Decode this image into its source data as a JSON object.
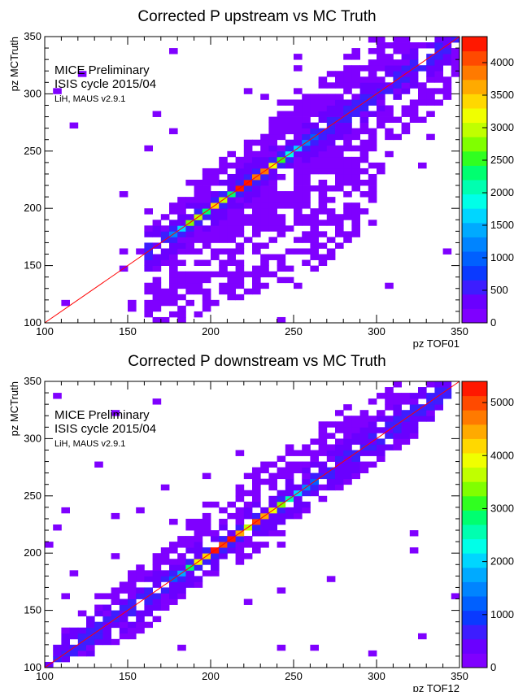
{
  "chart_data": [
    {
      "type": "heatmap",
      "title": "Corrected P upstream vs MC Truth",
      "xlabel": "pz TOF01",
      "ylabel": "pz MCTruth",
      "xlim": [
        100,
        350
      ],
      "ylim": [
        100,
        350
      ],
      "bin_width": 5,
      "x_ticks": [
        100,
        150,
        200,
        250,
        300,
        350
      ],
      "y_ticks": [
        100,
        150,
        200,
        250,
        300,
        350
      ],
      "z_max": 4400,
      "z_ticks": [
        0,
        500,
        1000,
        1500,
        2000,
        2500,
        3000,
        3500,
        4000
      ],
      "annotations": [
        "MICE Preliminary",
        "ISIS cycle 2015/04",
        "LiH, MAUS v2.9.1"
      ],
      "diagonal_line": {
        "from": [
          100,
          100
        ],
        "to": [
          350,
          350
        ],
        "color": "#ff0000"
      },
      "band_edges": [
        {
          "y": 100,
          "x_low": 160,
          "x_high": 180
        },
        {
          "y": 150,
          "x_low": 160,
          "x_high": 270
        },
        {
          "y": 180,
          "x_low": 160,
          "x_high": 290
        },
        {
          "y": 200,
          "x_low": 175,
          "x_high": 300
        },
        {
          "y": 230,
          "x_low": 195,
          "x_high": 305
        },
        {
          "y": 260,
          "x_low": 225,
          "x_high": 310
        },
        {
          "y": 290,
          "x_low": 240,
          "x_high": 340
        },
        {
          "y": 320,
          "x_low": 265,
          "x_high": 350
        },
        {
          "y": 350,
          "x_low": 300,
          "x_high": 350
        }
      ],
      "peak_bins": [
        {
          "x": 175,
          "y": 175,
          "z": 1200
        },
        {
          "x": 180,
          "y": 180,
          "z": 1700
        },
        {
          "x": 185,
          "y": 185,
          "z": 2700
        },
        {
          "x": 190,
          "y": 190,
          "z": 3000
        },
        {
          "x": 195,
          "y": 195,
          "z": 2300
        },
        {
          "x": 200,
          "y": 200,
          "z": 3400
        },
        {
          "x": 205,
          "y": 205,
          "z": 2900
        },
        {
          "x": 210,
          "y": 210,
          "z": 2200
        },
        {
          "x": 215,
          "y": 215,
          "z": 4400
        },
        {
          "x": 220,
          "y": 220,
          "z": 4200
        },
        {
          "x": 225,
          "y": 225,
          "z": 3800
        },
        {
          "x": 230,
          "y": 230,
          "z": 3900
        },
        {
          "x": 235,
          "y": 235,
          "z": 3100
        },
        {
          "x": 240,
          "y": 240,
          "z": 2600
        },
        {
          "x": 245,
          "y": 245,
          "z": 1800
        },
        {
          "x": 250,
          "y": 250,
          "z": 1600
        },
        {
          "x": 255,
          "y": 255,
          "z": 1300
        },
        {
          "x": 260,
          "y": 260,
          "z": 900
        },
        {
          "x": 265,
          "y": 265,
          "z": 600
        }
      ]
    },
    {
      "type": "heatmap",
      "title": "Corrected P downstream vs MC Truth",
      "xlabel": "pz TOF12",
      "ylabel": "pz MCTruth",
      "xlim": [
        100,
        350
      ],
      "ylim": [
        100,
        350
      ],
      "bin_width": 5,
      "x_ticks": [
        100,
        150,
        200,
        250,
        300,
        350
      ],
      "y_ticks": [
        100,
        150,
        200,
        250,
        300,
        350
      ],
      "z_max": 5400,
      "z_ticks": [
        0,
        1000,
        2000,
        3000,
        4000,
        5000
      ],
      "annotations": [
        "MICE Preliminary",
        "ISIS cycle 2015/04",
        "LiH, MAUS v2.9.1"
      ],
      "diagonal_line": {
        "from": [
          100,
          100
        ],
        "to": [
          350,
          350
        ],
        "color": "#ff0000"
      },
      "band_edges": [
        {
          "y": 100,
          "x_low": 100,
          "x_high": 110
        },
        {
          "y": 130,
          "x_low": 110,
          "x_high": 160
        },
        {
          "y": 160,
          "x_low": 130,
          "x_high": 180
        },
        {
          "y": 190,
          "x_low": 160,
          "x_high": 215
        },
        {
          "y": 220,
          "x_low": 185,
          "x_high": 245
        },
        {
          "y": 250,
          "x_low": 200,
          "x_high": 270
        },
        {
          "y": 280,
          "x_low": 235,
          "x_high": 300
        },
        {
          "y": 310,
          "x_low": 260,
          "x_high": 330
        },
        {
          "y": 350,
          "x_low": 310,
          "x_high": 350
        }
      ],
      "peak_bins": [
        {
          "x": 175,
          "y": 175,
          "z": 1200
        },
        {
          "x": 180,
          "y": 180,
          "z": 1800
        },
        {
          "x": 185,
          "y": 185,
          "z": 2900
        },
        {
          "x": 190,
          "y": 190,
          "z": 3900
        },
        {
          "x": 195,
          "y": 195,
          "z": 4300
        },
        {
          "x": 200,
          "y": 200,
          "z": 5400
        },
        {
          "x": 205,
          "y": 205,
          "z": 5000
        },
        {
          "x": 210,
          "y": 210,
          "z": 5300
        },
        {
          "x": 215,
          "y": 215,
          "z": 4500
        },
        {
          "x": 220,
          "y": 220,
          "z": 3700
        },
        {
          "x": 225,
          "y": 225,
          "z": 4900
        },
        {
          "x": 230,
          "y": 230,
          "z": 4500
        },
        {
          "x": 235,
          "y": 235,
          "z": 3900
        },
        {
          "x": 240,
          "y": 240,
          "z": 3300
        },
        {
          "x": 245,
          "y": 245,
          "z": 2500
        },
        {
          "x": 250,
          "y": 250,
          "z": 2000
        },
        {
          "x": 255,
          "y": 255,
          "z": 1500
        },
        {
          "x": 260,
          "y": 260,
          "z": 1300
        },
        {
          "x": 265,
          "y": 265,
          "z": 800
        }
      ]
    }
  ]
}
